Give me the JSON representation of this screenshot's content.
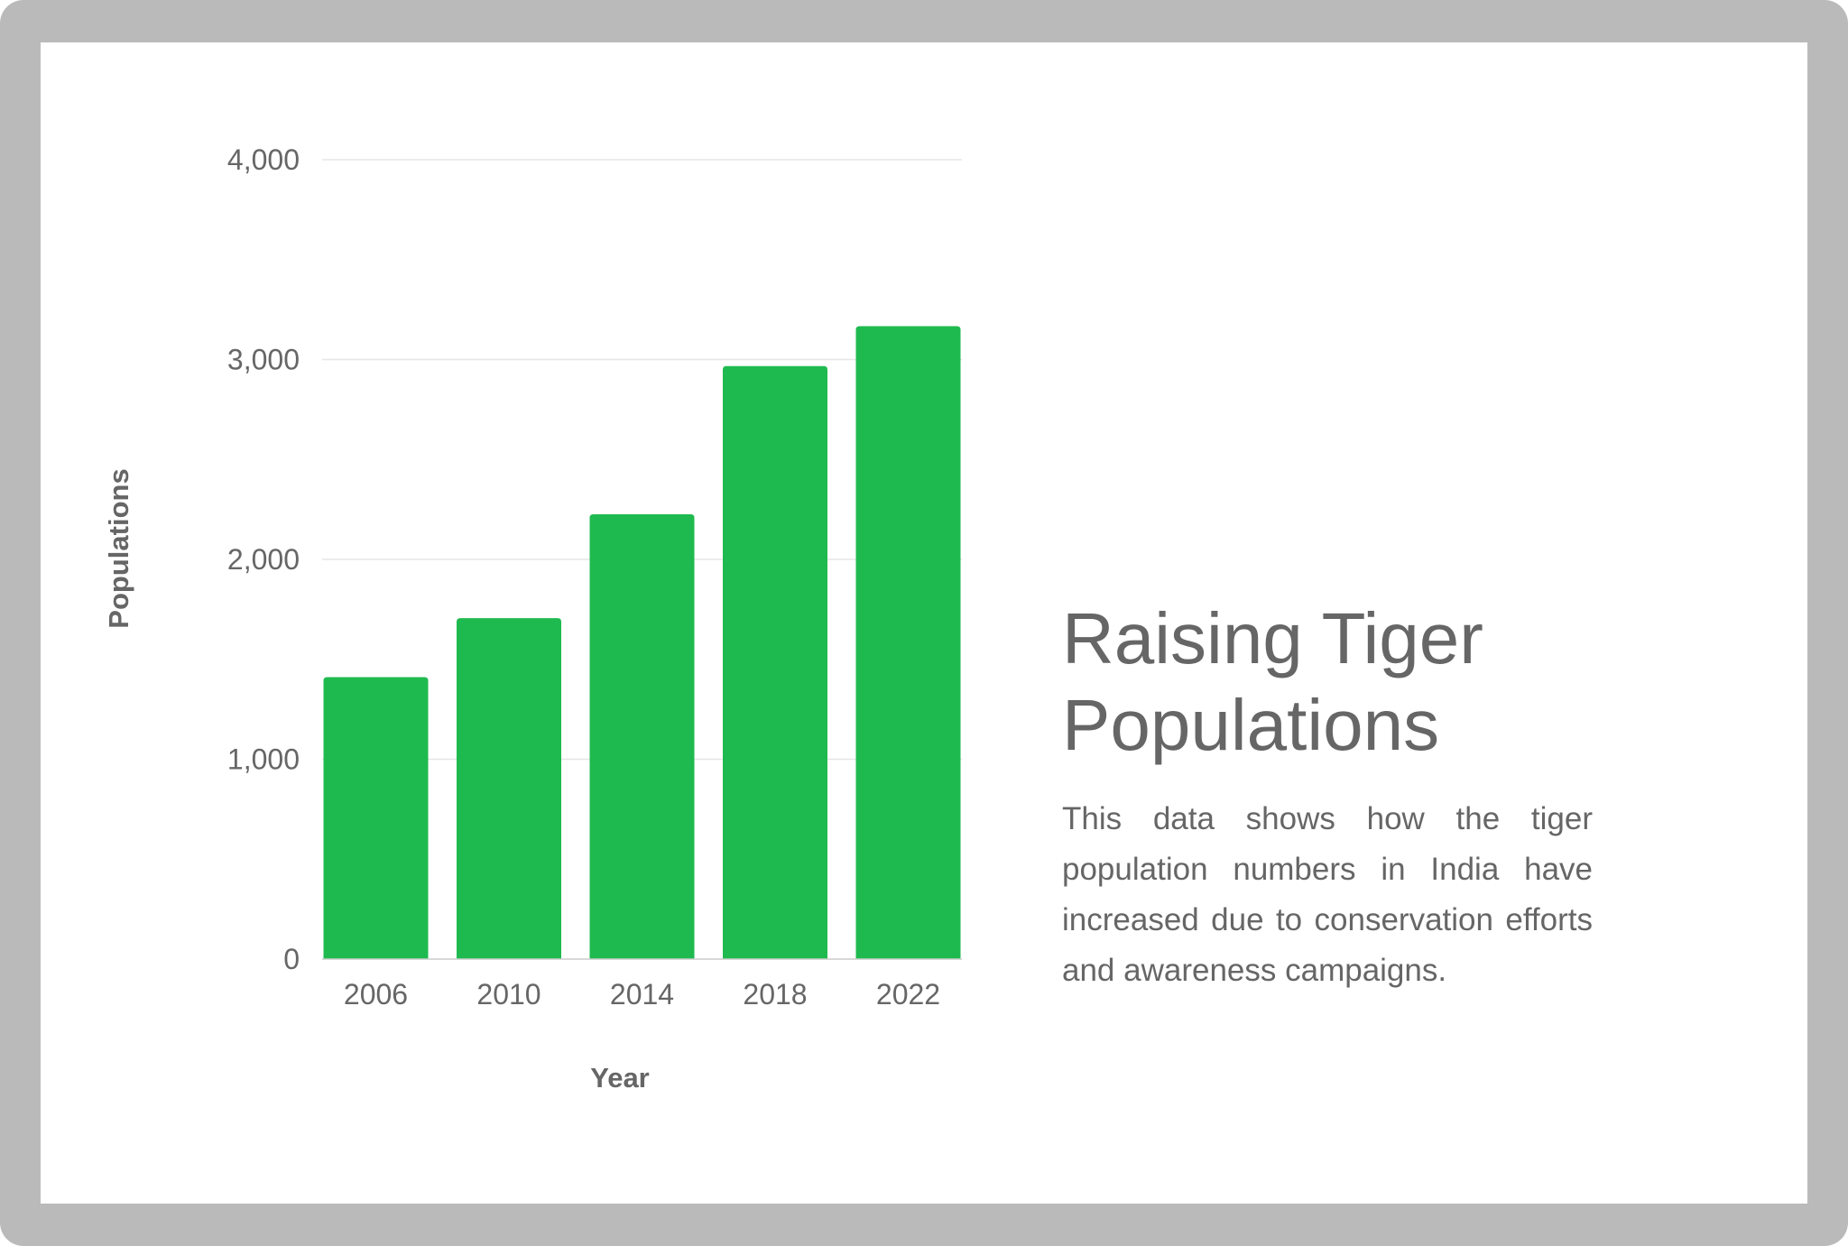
{
  "slide": {
    "title": "Raising Tiger Populations",
    "description": "This data shows how the tiger population numbers in India have increased due to conservation efforts and awareness campaigns."
  },
  "colors": {
    "frame": "#bababa",
    "background": "#ffffff",
    "bar": "#1fba4f",
    "gridline": "#e6e6e6",
    "text": "#666666"
  },
  "chart_data": {
    "type": "bar",
    "categories": [
      "2006",
      "2010",
      "2014",
      "2018",
      "2022"
    ],
    "series": [
      {
        "values": [
          1411,
          1706,
          2226,
          2967,
          3167
        ]
      }
    ],
    "xlabel": "Year",
    "ylabel": "Populations",
    "ylim": [
      0,
      4000
    ],
    "yticks": [
      0,
      1000,
      2000,
      3000,
      4000
    ],
    "ytick_labels": [
      "0",
      "1,000",
      "2,000",
      "3,000",
      "4,000"
    ],
    "grid": true,
    "legend": "none"
  }
}
